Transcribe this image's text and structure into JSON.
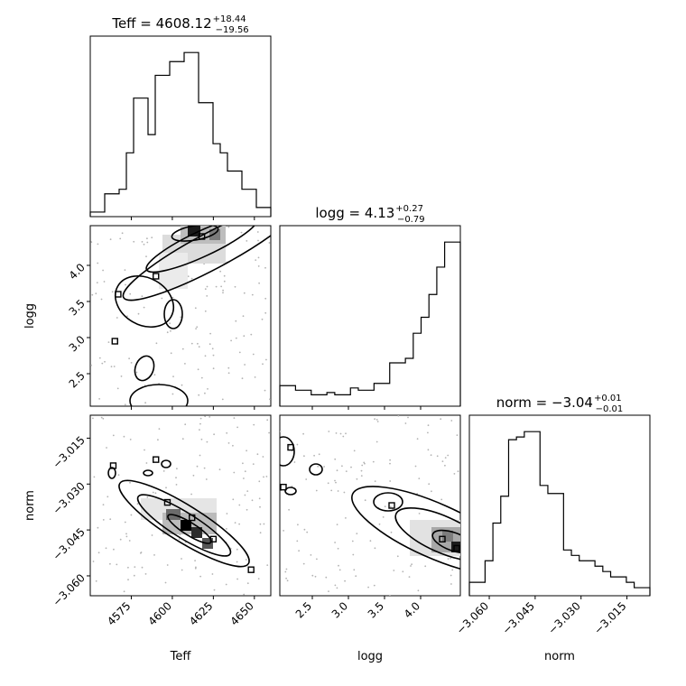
{
  "chart_data": {
    "type": "corner",
    "parameters": [
      "Teff",
      "logg",
      "norm"
    ],
    "titles": [
      {
        "param": "Teff",
        "text": "Teff = 4608.12",
        "plus": "+18.44",
        "minus": "−19.56"
      },
      {
        "param": "logg",
        "text": "logg = 4.13",
        "plus": "+0.27",
        "minus": "−0.79"
      },
      {
        "param": "norm",
        "text": "norm = −3.04",
        "plus": "+0.01",
        "minus": "−0.01"
      }
    ],
    "axis_labels": {
      "Teff": "Teff",
      "logg": "logg",
      "norm": "norm"
    },
    "ranges": {
      "Teff": [
        4550,
        4660
      ],
      "logg": [
        2.05,
        4.55
      ],
      "norm": [
        -3.0665,
        -3.0075
      ]
    },
    "ticks": {
      "Teff": {
        "values": [
          4575,
          4600,
          4625,
          4650
        ],
        "labels": [
          "4575",
          "4600",
          "4625",
          "4650"
        ]
      },
      "logg": {
        "values": [
          2.5,
          3.0,
          3.5,
          4.0
        ],
        "labels": [
          "2.5",
          "3.0",
          "3.5",
          "4.0"
        ]
      },
      "norm": {
        "values": [
          -3.06,
          -3.045,
          -3.03,
          -3.015
        ],
        "labels": [
          "−3.060",
          "−3.045",
          "−3.030",
          "−3.015"
        ]
      }
    },
    "histograms": {
      "Teff": {
        "counts": [
          2,
          2,
          10,
          10,
          12,
          28,
          52,
          52,
          36,
          62,
          62,
          68,
          68,
          72,
          72,
          50,
          50,
          32,
          28,
          20,
          20,
          12,
          12,
          4,
          4
        ]
      },
      "logg": {
        "counts": [
          9,
          9,
          7,
          7,
          5,
          5,
          6,
          5,
          5,
          8,
          7,
          7,
          10,
          10,
          19,
          19,
          21,
          32,
          39,
          49,
          61,
          72,
          72
        ]
      },
      "norm": {
        "counts": [
          5,
          5,
          13,
          27,
          37,
          58,
          59,
          61,
          61,
          41,
          38,
          38,
          17,
          15,
          13,
          13,
          11,
          9,
          7,
          7,
          5,
          3,
          3
        ]
      }
    },
    "density": {
      "logg_vs_Teff": {
        "modes": [
          [
            4618,
            4.4
          ],
          [
            4590,
            3.85
          ],
          [
            4567,
            3.6
          ],
          [
            4565,
            2.95
          ]
        ],
        "contour_levels": [
          "outer",
          "middle",
          "inner"
        ]
      },
      "norm_vs_Teff": {
        "modes": [
          [
            4612,
            -3.041
          ],
          [
            4597,
            -3.036
          ],
          [
            4625,
            -3.048
          ],
          [
            4564,
            -3.024
          ],
          [
            4590,
            -3.022
          ],
          [
            4648,
            -3.058
          ]
        ],
        "contour_levels": [
          "outer",
          "middle",
          "inner"
        ]
      },
      "norm_vs_logg": {
        "modes": [
          [
            4.5,
            -3.051
          ],
          [
            4.3,
            -3.048
          ],
          [
            3.6,
            -3.037
          ],
          [
            2.2,
            -3.018
          ],
          [
            2.1,
            -3.031
          ]
        ],
        "contour_levels": [
          "outer",
          "middle",
          "inner"
        ]
      }
    }
  }
}
